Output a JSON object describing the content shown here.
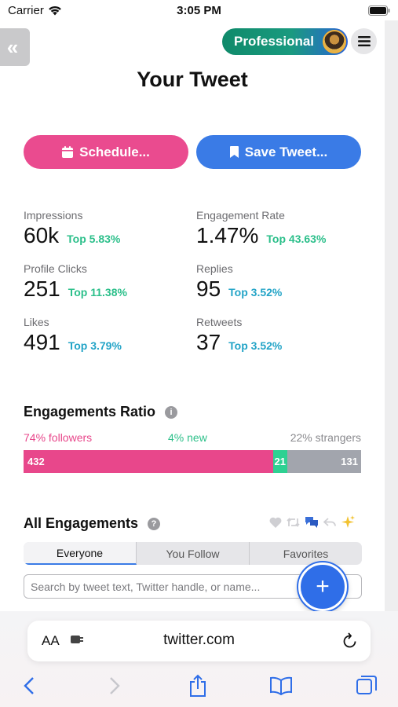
{
  "status_bar": {
    "carrier": "Carrier",
    "time": "3:05 PM"
  },
  "header": {
    "collapse_label": "«",
    "pro_label": "Professional",
    "title": "Your Tweet"
  },
  "actions": {
    "schedule_label": "Schedule...",
    "save_label": "Save Tweet..."
  },
  "stats": [
    {
      "label": "Impressions",
      "value": "60k",
      "rank": "Top 5.83%"
    },
    {
      "label": "Engagement Rate",
      "value": "1.47%",
      "rank": "Top 43.63%"
    },
    {
      "label": "Profile Clicks",
      "value": "251",
      "rank": "Top 11.38%"
    },
    {
      "label": "Replies",
      "value": "95",
      "rank": "Top 3.52%"
    },
    {
      "label": "Likes",
      "value": "491",
      "rank": "Top 3.79%"
    },
    {
      "label": "Retweets",
      "value": "37",
      "rank": "Top 3.52%"
    }
  ],
  "engagements_ratio": {
    "title": "Engagements Ratio",
    "info": "i",
    "followers_label": "74% followers",
    "new_label": "4% new",
    "strangers_label": "22% strangers",
    "followers_count": "432",
    "new_count": "21",
    "strangers_count": "131",
    "colors": {
      "followers": "#e8478b",
      "new": "#2ed192",
      "strangers": "#a2a5ad"
    }
  },
  "all_engagements": {
    "title": "All Engagements",
    "info": "?",
    "filter_icons": [
      "heart-icon",
      "retweet-icon",
      "reply-bubbles-icon",
      "quote-icon",
      "sparkles-icon"
    ],
    "tabs": [
      "Everyone",
      "You Follow",
      "Favorites"
    ],
    "search_placeholder": "Search by tweet text, Twitter handle, or name...",
    "fab_label": "+"
  },
  "browser": {
    "aa_label": "AA",
    "url": "twitter.com"
  }
}
